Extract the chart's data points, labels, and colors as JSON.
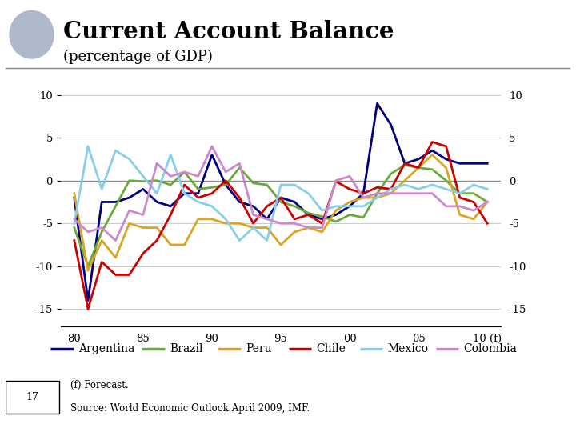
{
  "title": "Current Account Balance",
  "subtitle": "(percentage of GDP)",
  "background_color": "#ffffff",
  "plot_bg_color": "#ffffff",
  "years": [
    1980,
    1981,
    1982,
    1983,
    1984,
    1985,
    1986,
    1987,
    1988,
    1989,
    1990,
    1991,
    1992,
    1993,
    1994,
    1995,
    1996,
    1997,
    1998,
    1999,
    2000,
    2001,
    2002,
    2003,
    2004,
    2005,
    2006,
    2007,
    2008,
    2009,
    2010
  ],
  "Argentina": [
    -2.0,
    -14.0,
    -2.5,
    -2.5,
    -2.0,
    -1.0,
    -2.5,
    -3.0,
    -1.5,
    -1.5,
    3.0,
    -0.5,
    -2.5,
    -3.0,
    -4.5,
    -2.0,
    -2.5,
    -4.0,
    -4.5,
    -4.0,
    -3.0,
    -1.5,
    9.0,
    6.5,
    2.0,
    2.5,
    3.5,
    2.5,
    2.0,
    2.0,
    2.0
  ],
  "Brazil": [
    -5.5,
    -10.0,
    -6.0,
    -3.0,
    0.0,
    -0.1,
    0.0,
    -0.5,
    1.0,
    -1.0,
    -0.8,
    -0.5,
    1.5,
    -0.3,
    -0.5,
    -2.5,
    -3.0,
    -3.8,
    -4.2,
    -4.8,
    -4.0,
    -4.3,
    -1.5,
    0.8,
    1.8,
    1.5,
    1.3,
    0.0,
    -1.5,
    -1.5,
    -2.5
  ],
  "Peru": [
    -1.5,
    -10.5,
    -7.0,
    -9.0,
    -5.0,
    -5.5,
    -5.5,
    -7.5,
    -7.5,
    -4.5,
    -4.5,
    -5.0,
    -5.0,
    -5.5,
    -5.5,
    -7.5,
    -6.0,
    -5.5,
    -6.0,
    -3.5,
    -2.5,
    -2.0,
    -2.0,
    -1.5,
    0.0,
    1.5,
    3.0,
    1.5,
    -4.0,
    -4.5,
    -2.5
  ],
  "Chile": [
    -7.0,
    -15.0,
    -9.5,
    -11.0,
    -11.0,
    -8.5,
    -7.0,
    -4.0,
    -0.5,
    -2.0,
    -1.5,
    0.0,
    -2.0,
    -5.0,
    -3.0,
    -2.0,
    -4.5,
    -4.0,
    -5.0,
    -0.1,
    -1.0,
    -1.5,
    -0.8,
    -1.0,
    2.0,
    1.5,
    4.5,
    4.0,
    -2.0,
    -2.5,
    -5.0
  ],
  "Mexico": [
    -5.0,
    4.0,
    -1.0,
    3.5,
    2.5,
    0.5,
    -1.5,
    3.0,
    -1.5,
    -2.5,
    -3.0,
    -4.5,
    -7.0,
    -5.5,
    -7.0,
    -0.5,
    -0.5,
    -1.5,
    -3.5,
    -3.0,
    -3.0,
    -3.0,
    -2.0,
    -1.0,
    -0.5,
    -1.0,
    -0.5,
    -1.0,
    -1.5,
    -0.5,
    -1.0
  ],
  "Colombia": [
    -4.5,
    -6.0,
    -5.5,
    -7.0,
    -3.5,
    -4.0,
    2.0,
    0.5,
    1.0,
    0.5,
    4.0,
    1.0,
    2.0,
    -4.0,
    -4.5,
    -5.0,
    -5.0,
    -5.5,
    -5.5,
    0.0,
    0.5,
    -2.0,
    -1.5,
    -1.5,
    -1.5,
    -1.5,
    -1.5,
    -3.0,
    -3.0,
    -3.5,
    -2.5
  ],
  "colors": {
    "Argentina": "#000080",
    "Brazil": "#6aaa3a",
    "Peru": "#DAA520",
    "Chile": "#CC0000",
    "Mexico": "#87CEEB",
    "Colombia": "#CC88CC"
  },
  "ylim": [
    -17,
    12
  ],
  "yticks": [
    -15,
    -10,
    -5,
    0,
    5,
    10
  ],
  "xtick_positions": [
    1980,
    1985,
    1990,
    1995,
    2000,
    2005,
    2010
  ],
  "xtick_labels": [
    "80",
    "85",
    "90",
    "95",
    "00",
    "05",
    "10 (f)"
  ],
  "footnote_line1": "(f) Forecast.",
  "footnote_line2": "Source: World Economic Outlook April 2009, IMF.",
  "page_number": "17",
  "header_line_color": "#888888",
  "grid_color": "#cccccc",
  "zero_line_color": "#888888"
}
